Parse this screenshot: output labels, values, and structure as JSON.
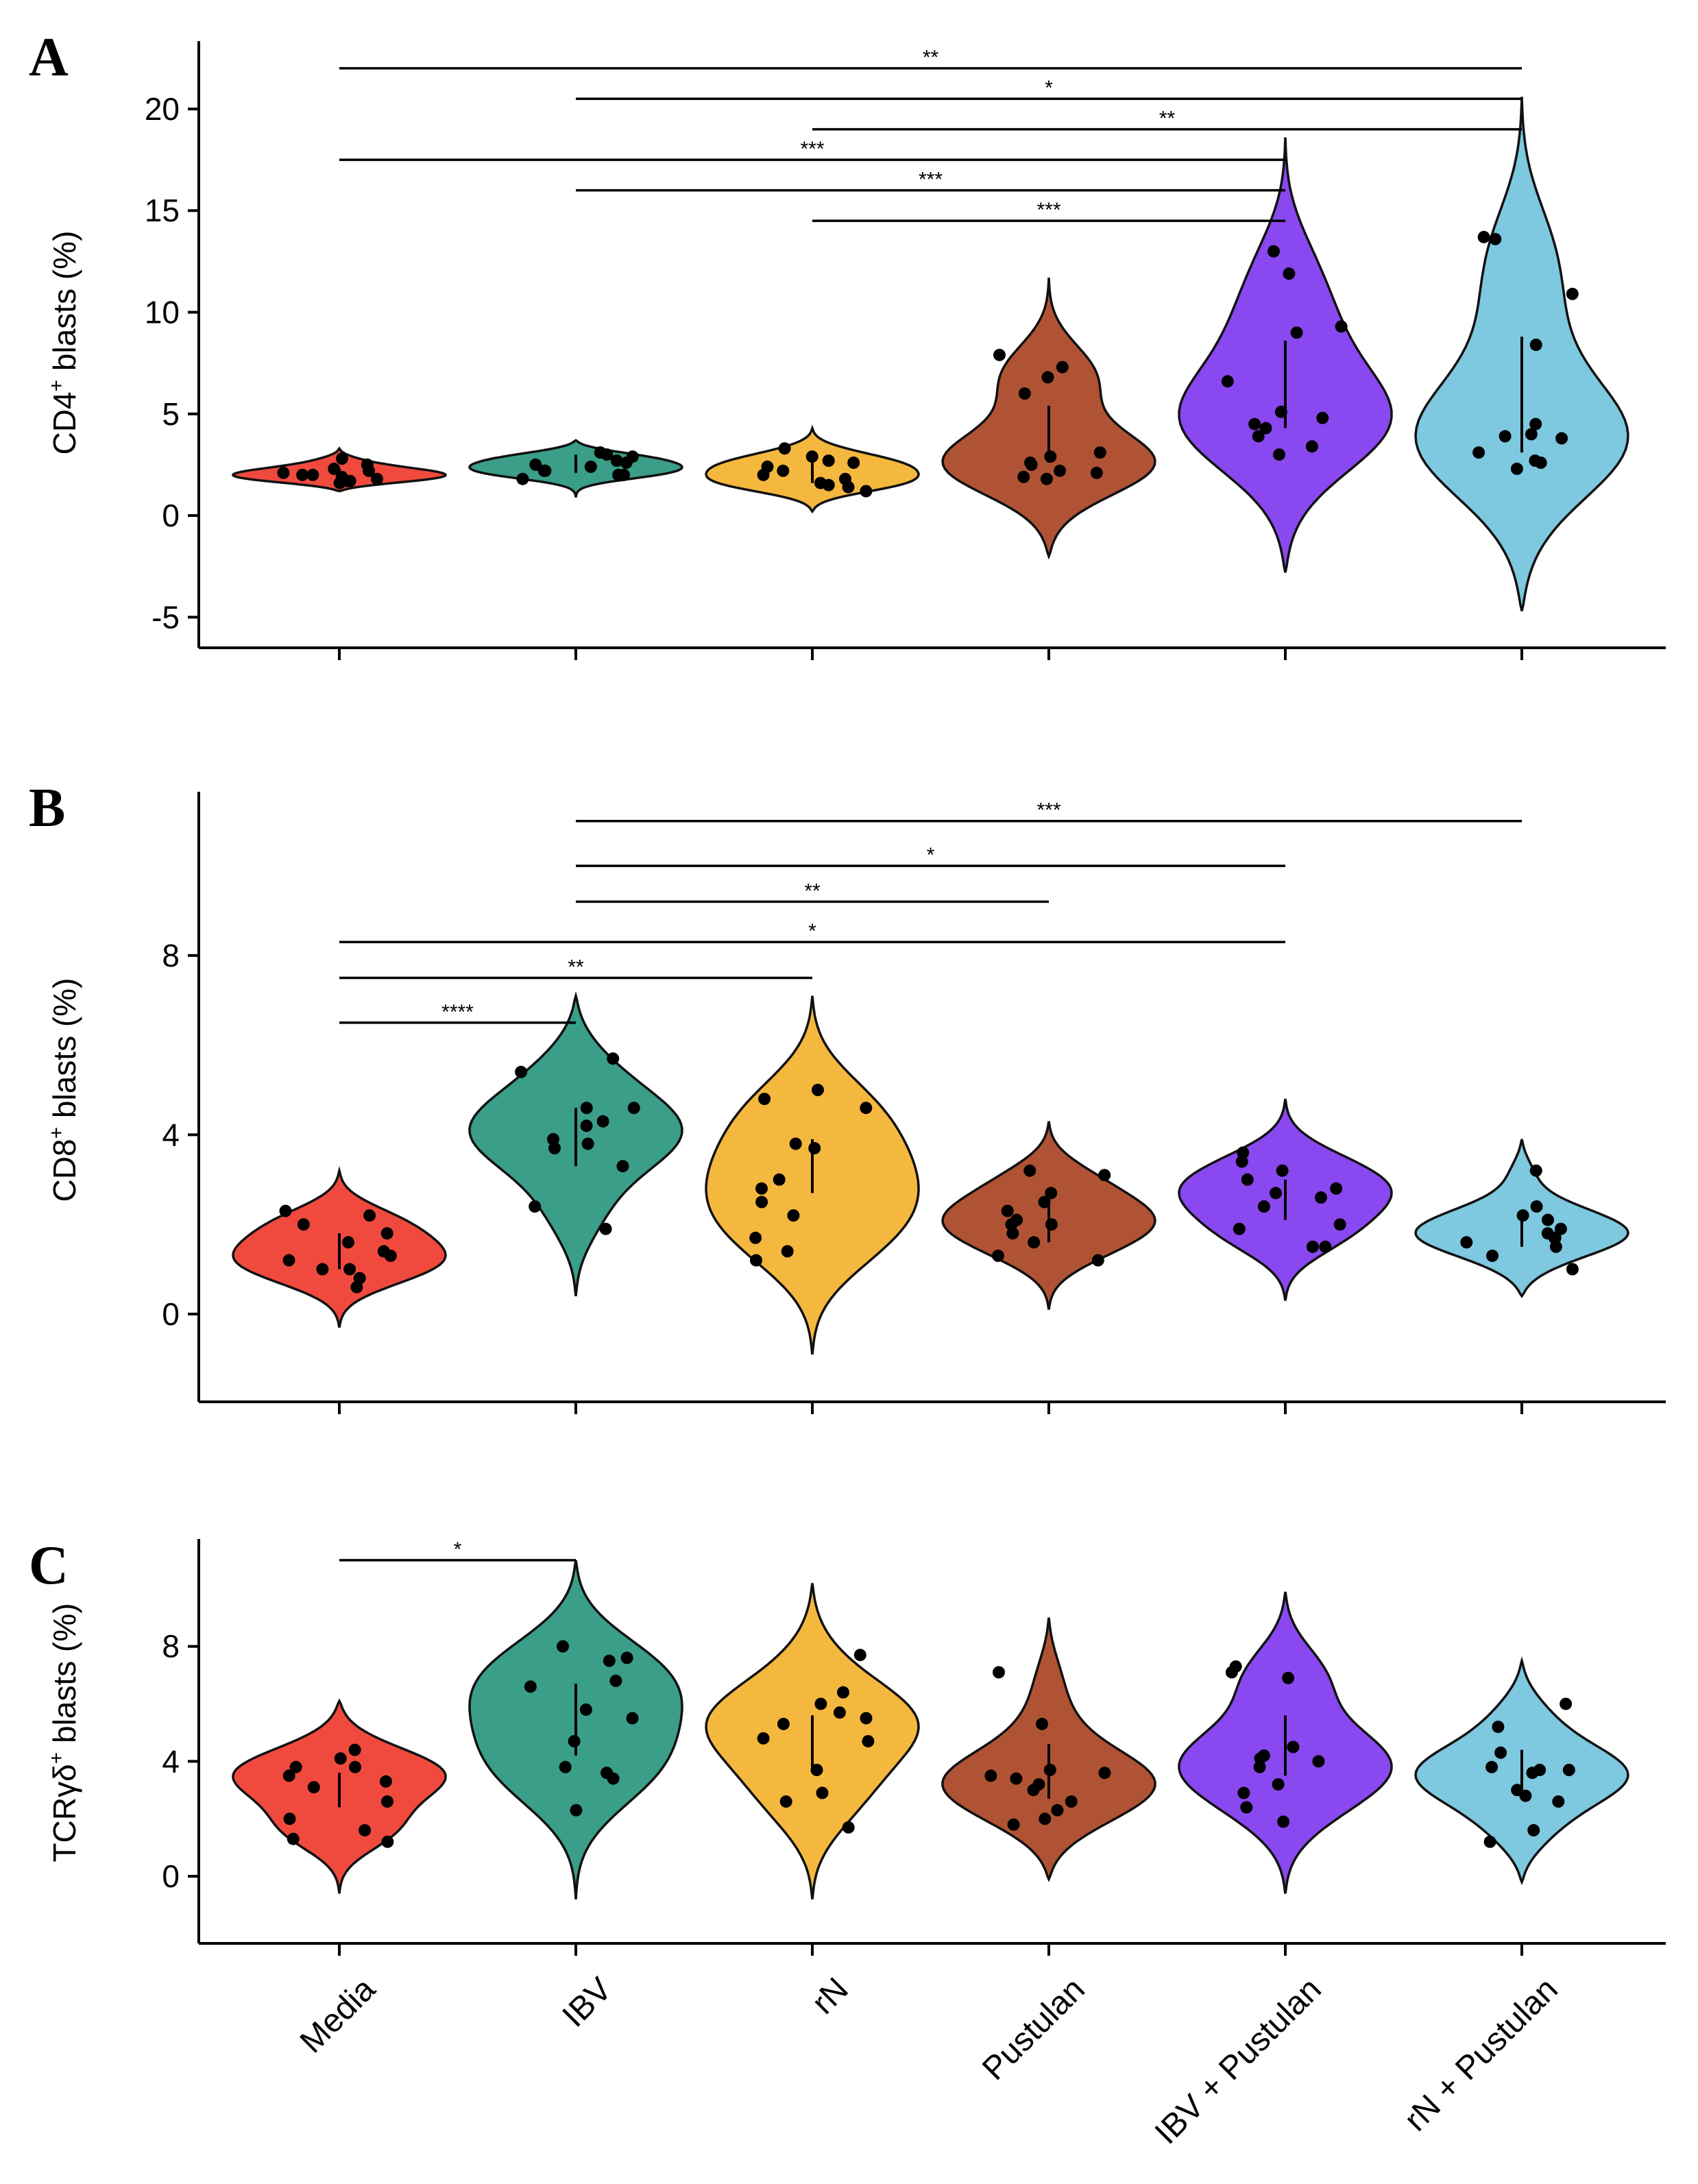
{
  "chart_data": [
    {
      "type": "violin",
      "panel": "A",
      "ylabel": {
        "pre": "CD4",
        "sup": "+",
        "post": " blasts (%)"
      },
      "ylim": [
        -6,
        23
      ],
      "yticks": [
        -5,
        0,
        5,
        10,
        15,
        20
      ],
      "categories": [
        "Media",
        "IBV",
        "rN",
        "Pustulan",
        "IBV + Pustulan",
        "rN + Pustulan"
      ],
      "colors": [
        "#f04a3e",
        "#3a9e88",
        "#f5b83e",
        "#b05335",
        "#8a48f0",
        "#7ec8e0"
      ],
      "violin_range": [
        [
          1.2,
          3.3
        ],
        [
          0.9,
          3.7
        ],
        [
          0.2,
          4.3
        ],
        [
          -2.0,
          11.7
        ],
        [
          -2.8,
          18.6
        ],
        [
          -4.7,
          20.6
        ]
      ],
      "violin_mode": [
        2.0,
        2.5,
        2.0,
        2.6,
        4.5,
        3.0
      ],
      "median_bar": [
        [
          1.7,
          2.3
        ],
        [
          2.1,
          3.0
        ],
        [
          1.6,
          2.7
        ],
        [
          2.6,
          5.4
        ],
        [
          4.3,
          8.6
        ],
        [
          3.1,
          8.8
        ]
      ],
      "points": [
        [
          2.0,
          2.5,
          1.7,
          2.3,
          2.0,
          1.8,
          2.2,
          1.6,
          2.8,
          1.9,
          2.1,
          1.7
        ],
        [
          2.2,
          2.9,
          3.1,
          2.0,
          2.7,
          1.8,
          2.4,
          2.6,
          2.2,
          3.0,
          2.5,
          2.0
        ],
        [
          1.6,
          2.4,
          2.7,
          1.2,
          2.2,
          3.3,
          1.8,
          2.6,
          1.5,
          2.0,
          2.9,
          1.4
        ],
        [
          1.8,
          2.5,
          6.8,
          7.9,
          2.1,
          6.0,
          2.6,
          7.3,
          2.2,
          2.9,
          1.9,
          3.1
        ],
        [
          11.9,
          13.0,
          9.0,
          3.0,
          5.1,
          6.6,
          3.4,
          4.3,
          4.5,
          4.8,
          9.3,
          3.9
        ],
        [
          8.4,
          2.7,
          3.1,
          2.3,
          4.0,
          13.7,
          13.6,
          10.9,
          4.5,
          2.6,
          3.8,
          3.9
        ]
      ],
      "comparisons": [
        {
          "from": 0,
          "to": 5,
          "label": "**",
          "y": 22.0
        },
        {
          "from": 1,
          "to": 5,
          "label": "*",
          "y": 20.5
        },
        {
          "from": 2,
          "to": 5,
          "label": "**",
          "y": 19.0
        },
        {
          "from": 0,
          "to": 4,
          "label": "***",
          "y": 17.5
        },
        {
          "from": 1,
          "to": 4,
          "label": "***",
          "y": 16.0
        },
        {
          "from": 2,
          "to": 4,
          "label": "***",
          "y": 14.5
        }
      ]
    },
    {
      "type": "violin",
      "panel": "B",
      "ylabel": {
        "pre": "CD8",
        "sup": "+",
        "post": " blasts (%)"
      },
      "ylim": [
        -1.5,
        11.5
      ],
      "yticks": [
        0,
        4,
        8
      ],
      "categories": [
        "Media",
        "IBV",
        "rN",
        "Pustulan",
        "IBV + Pustulan",
        "rN + Pustulan"
      ],
      "colors": [
        "#f04a3e",
        "#3a9e88",
        "#f5b83e",
        "#b05335",
        "#8a48f0",
        "#7ec8e0"
      ],
      "violin_range": [
        [
          -0.3,
          3.2
        ],
        [
          0.4,
          7.1
        ],
        [
          -0.9,
          7.1
        ],
        [
          0.1,
          4.3
        ],
        [
          0.3,
          4.8
        ],
        [
          0.4,
          3.9
        ]
      ],
      "violin_mode": [
        1.5,
        4.3,
        3.0,
        2.2,
        2.6,
        1.8
      ],
      "median_bar": [
        [
          1.0,
          1.8
        ],
        [
          3.3,
          4.6
        ],
        [
          2.7,
          3.9
        ],
        [
          1.6,
          2.5
        ],
        [
          2.1,
          3.0
        ],
        [
          1.5,
          2.2
        ]
      ],
      "points": [
        [
          1.0,
          2.3,
          1.0,
          1.4,
          2.0,
          1.8,
          0.6,
          2.2,
          1.2,
          0.8,
          1.3,
          1.6
        ],
        [
          5.4,
          5.7,
          3.3,
          3.7,
          2.4,
          4.6,
          4.6,
          4.3,
          3.8,
          1.9,
          4.2,
          3.9
        ],
        [
          1.4,
          1.7,
          1.2,
          5.0,
          3.7,
          3.8,
          2.2,
          2.5,
          4.8,
          4.6,
          2.8,
          3.0
        ],
        [
          1.2,
          2.5,
          2.1,
          2.0,
          3.1,
          3.2,
          1.8,
          2.0,
          1.3,
          2.7,
          1.6,
          2.3
        ],
        [
          3.6,
          2.0,
          1.5,
          3.4,
          3.0,
          2.7,
          2.6,
          1.9,
          1.5,
          2.8,
          2.4,
          3.2
        ],
        [
          1.3,
          1.7,
          2.2,
          3.2,
          2.1,
          1.6,
          1.7,
          2.4,
          1.0,
          1.9,
          1.5,
          1.8
        ]
      ],
      "comparisons": [
        {
          "from": 1,
          "to": 5,
          "label": "***",
          "y": 11.0
        },
        {
          "from": 1,
          "to": 4,
          "label": "*",
          "y": 10.0
        },
        {
          "from": 1,
          "to": 3,
          "label": "**",
          "y": 9.2
        },
        {
          "from": 0,
          "to": 4,
          "label": "*",
          "y": 8.3
        },
        {
          "from": 0,
          "to": 2,
          "label": "**",
          "y": 7.5
        },
        {
          "from": 0,
          "to": 1,
          "label": "****",
          "y": 6.5
        }
      ]
    },
    {
      "type": "violin",
      "panel": "C",
      "ylabel": {
        "pre": "TCRγδ",
        "sup": "+",
        "post": " blasts (%)"
      },
      "ylim": [
        -1.5,
        11.5
      ],
      "yticks": [
        0,
        4,
        8
      ],
      "categories": [
        "Media",
        "IBV",
        "rN",
        "Pustulan",
        "IBV + Pustulan",
        "rN + Pustulan"
      ],
      "colors": [
        "#f04a3e",
        "#3a9e88",
        "#f5b83e",
        "#b05335",
        "#8a48f0",
        "#7ec8e0"
      ],
      "violin_range": [
        [
          -0.6,
          6.1
        ],
        [
          -0.8,
          11.0
        ],
        [
          -0.8,
          10.2
        ],
        [
          -0.1,
          9.0
        ],
        [
          -0.6,
          9.9
        ],
        [
          -0.2,
          7.5
        ]
      ],
      "violin_mode": [
        3.8,
        5.5,
        5.2,
        3.5,
        4.5,
        3.8
      ],
      "median_bar": [
        [
          2.4,
          3.6
        ],
        [
          4.2,
          6.7
        ],
        [
          3.8,
          5.6
        ],
        [
          2.7,
          4.6
        ],
        [
          3.5,
          5.6
        ],
        [
          2.9,
          4.4
        ]
      ],
      "points": [
        [
          4.4,
          4.1,
          2.6,
          1.6,
          1.3,
          3.1,
          3.3,
          3.8,
          1.2,
          2.0,
          3.8,
          3.5
        ],
        [
          3.8,
          7.6,
          6.6,
          3.4,
          3.6,
          5.5,
          7.5,
          6.8,
          5.8,
          8.0,
          2.3,
          4.7
        ],
        [
          1.7,
          3.7,
          6.4,
          5.3,
          2.6,
          2.9,
          5.5,
          7.7,
          5.7,
          4.8,
          4.7,
          6.0
        ],
        [
          7.1,
          3.7,
          3.4,
          2.0,
          3.2,
          3.5,
          3.0,
          3.6,
          2.3,
          1.8,
          5.3,
          2.6
        ],
        [
          6.9,
          4.2,
          3.2,
          2.9,
          7.3,
          4.1,
          3.8,
          1.9,
          4.0,
          2.4,
          7.1,
          4.5
        ],
        [
          2.6,
          3.7,
          3.6,
          5.2,
          4.3,
          3.7,
          6.0,
          1.6,
          1.2,
          3.8,
          3.0,
          2.8
        ]
      ],
      "comparisons": [
        {
          "from": 0,
          "to": 1,
          "label": "*",
          "y": 11.0
        }
      ]
    }
  ]
}
